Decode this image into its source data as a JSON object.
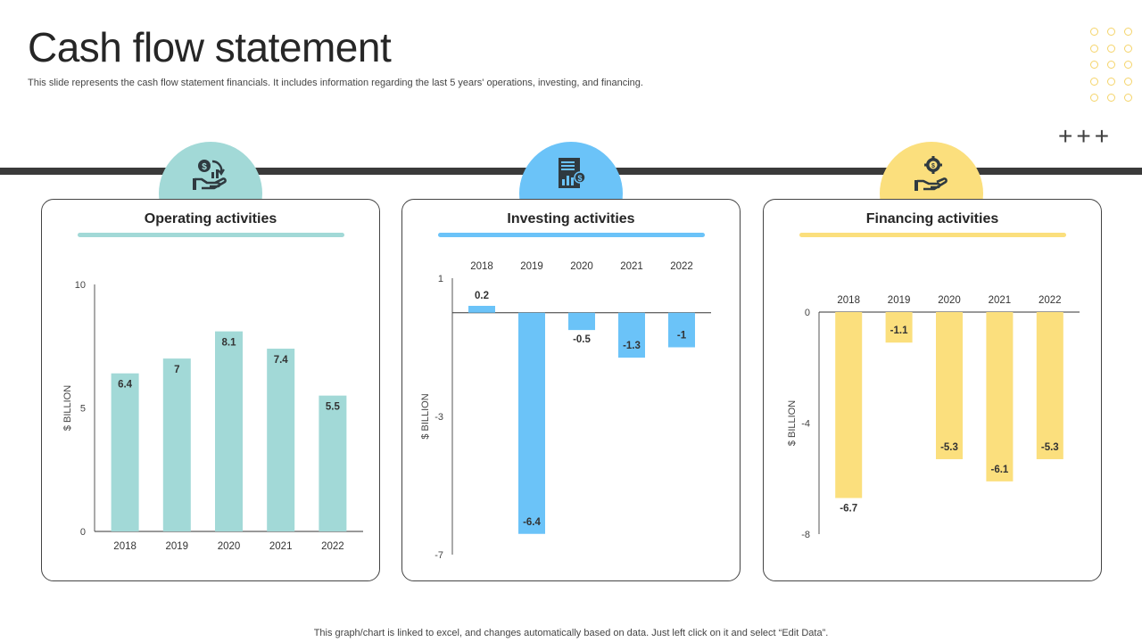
{
  "header": {
    "title": "Cash flow statement",
    "subtitle": "This slide represents the cash flow statement financials. It includes information regarding the last 5 years' operations, investing, and financing."
  },
  "decorations": {
    "plus_signs": "+++"
  },
  "footer": "This graph/chart is linked to excel,  and changes automatically based on data. Just left click on it and select “Edit Data”.",
  "colors": {
    "operating": "#a2d9d7",
    "investing": "#6bc3f8",
    "financing": "#fbdf7d",
    "dark_band": "#3a3a3a",
    "icon": "#2f3a40"
  },
  "cards": [
    {
      "title": "Operating activities",
      "icon": "money-cycle-hand-icon"
    },
    {
      "title": "Investing activities",
      "icon": "financial-report-icon"
    },
    {
      "title": "Financing activities",
      "icon": "gear-dollar-hand-icon"
    }
  ],
  "chart_data": [
    {
      "type": "bar",
      "title": "Operating activities",
      "categories": [
        "2018",
        "2019",
        "2020",
        "2021",
        "2022"
      ],
      "values": [
        6.4,
        7,
        8.1,
        7.4,
        5.5
      ],
      "ylabel": "$ BILLION",
      "ylim": [
        0,
        10
      ],
      "yticks": [
        0,
        5,
        10
      ],
      "category_labels_position": "bottom",
      "color": "#a2d9d7"
    },
    {
      "type": "bar",
      "title": "Investing activities",
      "categories": [
        "2018",
        "2019",
        "2020",
        "2021",
        "2022"
      ],
      "values": [
        0.2,
        -6.4,
        -0.5,
        -1.3,
        -1
      ],
      "ylabel": "$ BILLION",
      "ylim": [
        -7,
        1
      ],
      "yticks": [
        -7,
        -3,
        1
      ],
      "category_labels_position": "top",
      "color": "#6bc3f8"
    },
    {
      "type": "bar",
      "title": "Financing activities",
      "categories": [
        "2018",
        "2019",
        "2020",
        "2021",
        "2022"
      ],
      "values": [
        -6.7,
        -1.1,
        -5.3,
        -6.1,
        -5.3
      ],
      "ylabel": "$ BILLION",
      "ylim": [
        -8,
        0
      ],
      "yticks": [
        -8,
        -4,
        0
      ],
      "category_labels_position": "top",
      "color": "#fbdf7d"
    }
  ]
}
